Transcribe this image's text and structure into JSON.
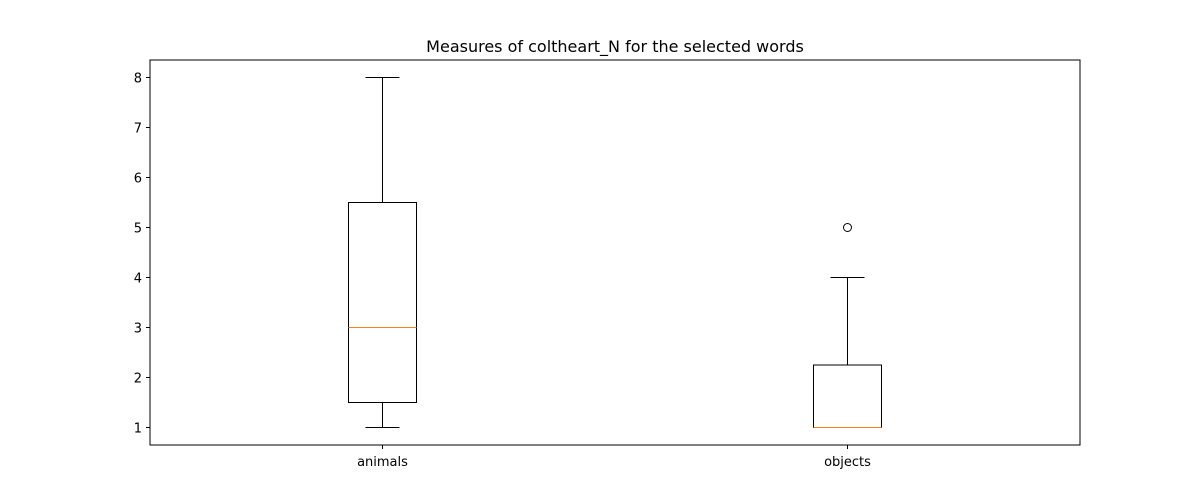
{
  "chart_data": {
    "type": "box",
    "title": "Measures of coltheart_N for the selected words",
    "xlabel": "",
    "ylabel": "",
    "ylim": [
      0.65,
      8.35
    ],
    "yticks": [
      1,
      2,
      3,
      4,
      5,
      6,
      7,
      8
    ],
    "grid": false,
    "categories": [
      "animals",
      "objects"
    ],
    "boxes": [
      {
        "label": "animals",
        "whisker_low": 1,
        "q1": 1.5,
        "median": 3,
        "q3": 5.5,
        "whisker_high": 8,
        "outliers": []
      },
      {
        "label": "objects",
        "whisker_low": 1,
        "q1": 1,
        "median": 1,
        "q3": 2.25,
        "whisker_high": 4,
        "outliers": [
          5
        ]
      }
    ],
    "colors": {
      "box": "#000000",
      "median": "#ff7f0e"
    }
  }
}
